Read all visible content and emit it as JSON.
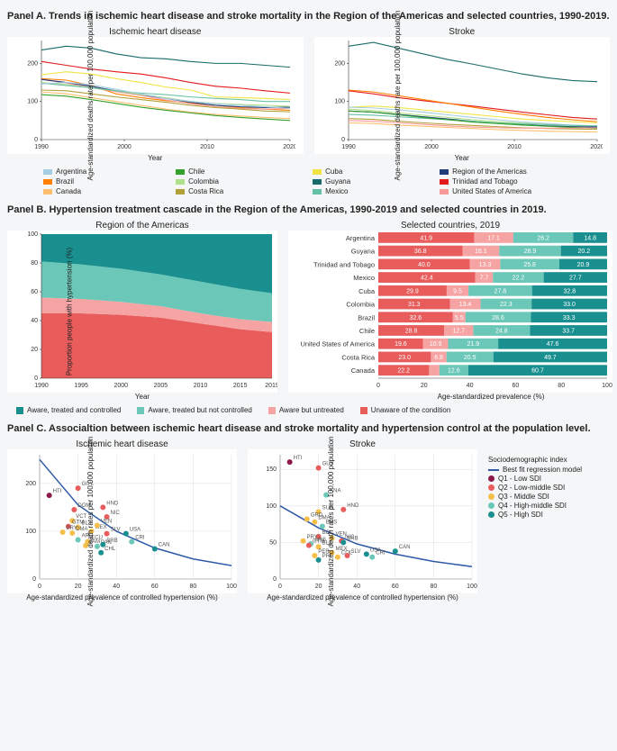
{
  "panelA": {
    "title": "Panel A. Trends in ischemic heart disease and stroke mortality in the Region of the Americas and selected countries, 1990-2019.",
    "left_title": "Ischemic heart disease",
    "right_title": "Stroke",
    "ylabel": "Age-standardized deaths rate per 100,000 population",
    "xlabel": "Year",
    "xlim": [
      1990,
      2020
    ],
    "xtick_step": 10,
    "ylim": [
      0,
      260
    ],
    "yticks": [
      0,
      100,
      200
    ],
    "colors": {
      "Argentina": "#a6cee3",
      "Brazil": "#ff7f00",
      "Canada": "#fdbf6f",
      "Chile": "#33a02c",
      "Colombia": "#b2df8a",
      "Costa Rica": "#b1a13a",
      "Cuba": "#f0e442",
      "Guyana": "#1a6b6b",
      "Mexico": "#66c2a5",
      "Region of the Americas": "#1f3d7a",
      "Trinidad and Tobago": "#e31a1c",
      "United States of America": "#fb9a99"
    },
    "legend_grid": [
      [
        "Argentina",
        "Chile",
        "Cuba",
        "Region of the Americas"
      ],
      [
        "Brazil",
        "Colombia",
        "Guyana",
        "Trinidad and Tobago"
      ],
      [
        "Canada",
        "Costa Rica",
        "Mexico",
        "United States of America"
      ]
    ],
    "x_years": [
      1990,
      1993,
      1996,
      1999,
      2002,
      2005,
      2008,
      2011,
      2014,
      2017,
      2020
    ],
    "ihd_series": {
      "Guyana": [
        235,
        245,
        240,
        225,
        215,
        212,
        205,
        200,
        200,
        195,
        190
      ],
      "Trinidad and Tobago": [
        205,
        195,
        185,
        178,
        172,
        162,
        150,
        140,
        135,
        128,
        122
      ],
      "Cuba": [
        170,
        178,
        172,
        160,
        150,
        138,
        130,
        112,
        110,
        108,
        105
      ],
      "Brazil": [
        160,
        156,
        142,
        120,
        110,
        102,
        96,
        90,
        84,
        80,
        77
      ],
      "United States of America": [
        158,
        148,
        136,
        126,
        116,
        104,
        94,
        86,
        82,
        80,
        82
      ],
      "Region of the Americas": [
        158,
        150,
        140,
        128,
        118,
        108,
        98,
        90,
        86,
        84,
        85
      ],
      "Colombia": [
        150,
        144,
        136,
        128,
        118,
        110,
        100,
        95,
        92,
        90,
        87
      ],
      "Mexico": [
        148,
        142,
        136,
        128,
        122,
        118,
        112,
        108,
        105,
        100,
        100
      ],
      "Argentina": [
        146,
        150,
        144,
        132,
        120,
        108,
        100,
        94,
        90,
        86,
        82
      ],
      "Costa Rica": [
        130,
        128,
        120,
        112,
        105,
        98,
        90,
        84,
        80,
        75,
        73
      ],
      "Canada": [
        125,
        120,
        110,
        100,
        90,
        80,
        72,
        66,
        62,
        58,
        55
      ],
      "Chile": [
        118,
        114,
        105,
        95,
        85,
        77,
        70,
        63,
        58,
        54,
        50
      ]
    },
    "stroke_series": {
      "Guyana": [
        245,
        255,
        240,
        225,
        210,
        198,
        185,
        172,
        162,
        155,
        152
      ],
      "Trinidad and Tobago": [
        128,
        120,
        110,
        102,
        95,
        88,
        80,
        72,
        65,
        58,
        54
      ],
      "Brazil": [
        130,
        125,
        115,
        105,
        95,
        85,
        75,
        66,
        58,
        52,
        47
      ],
      "Cuba": [
        85,
        88,
        84,
        78,
        72,
        66,
        60,
        54,
        50,
        47,
        44
      ],
      "Colombia": [
        80,
        76,
        70,
        64,
        58,
        52,
        47,
        43,
        40,
        38,
        36
      ],
      "Argentina": [
        85,
        83,
        78,
        72,
        65,
        58,
        52,
        46,
        42,
        38,
        35
      ],
      "Region of the Americas": [
        75,
        72,
        66,
        60,
        54,
        48,
        43,
        39,
        36,
        34,
        33
      ],
      "Mexico": [
        66,
        64,
        60,
        56,
        52,
        48,
        44,
        41,
        39,
        37,
        36
      ],
      "Chile": [
        75,
        72,
        65,
        58,
        52,
        46,
        42,
        38,
        35,
        32,
        30
      ],
      "Costa Rica": [
        55,
        53,
        48,
        44,
        40,
        37,
        34,
        31,
        29,
        28,
        27
      ],
      "United States of America": [
        50,
        48,
        44,
        40,
        36,
        33,
        31,
        30,
        30,
        30,
        31
      ],
      "Canada": [
        44,
        42,
        38,
        35,
        32,
        29,
        26,
        24,
        22,
        21,
        20
      ]
    }
  },
  "panelB": {
    "title": "Panel B. Hypertension treatment cascade in the Region of the Americas, 1990-2019 and selected countries in 2019.",
    "left_title": "Region of the Americas",
    "right_title": "Selected countries, 2019",
    "ylabel": "Proportion people with hypertension (%)",
    "xlabel_left": "Year",
    "xlabel_right": "Age-standardized prevalence (%)",
    "xlim_left": [
      1990,
      2019
    ],
    "xtick_step_left": 5,
    "ylim_left": [
      0,
      100
    ],
    "ytick_step": 20,
    "colors": {
      "controlled": "#1a8f8f",
      "treated_uncontrolled": "#6bc7b8",
      "aware_untreated": "#f5a3a3",
      "unaware": "#e85c5c"
    },
    "legend_labels": {
      "controlled": "Aware, treated and controlled",
      "treated_uncontrolled": "Aware, treated but not controlled",
      "aware_untreated": "Aware but untreated",
      "unaware": "Unaware of the condition"
    },
    "area_x": [
      1990,
      1995,
      2000,
      2005,
      2010,
      2015,
      2019
    ],
    "area_unaware": [
      45,
      45,
      44,
      42,
      38,
      34,
      32
    ],
    "area_aware_untreated": [
      11,
      10,
      9,
      8,
      7,
      7,
      7
    ],
    "area_treated_uncontrolled": [
      25,
      24,
      23,
      22,
      22,
      21,
      20
    ],
    "bars": [
      {
        "country": "Argentina",
        "vals": [
          41.9,
          17.1,
          26.2,
          14.8
        ]
      },
      {
        "country": "Guyana",
        "vals": [
          36.8,
          16.1,
          26.9,
          20.2
        ]
      },
      {
        "country": "Trinidad and Tobago",
        "vals": [
          40.0,
          13.3,
          25.8,
          20.9
        ]
      },
      {
        "country": "Mexico",
        "vals": [
          42.4,
          7.7,
          22.2,
          27.7
        ]
      },
      {
        "country": "Cuba",
        "vals": [
          29.9,
          9.5,
          27.8,
          32.8
        ]
      },
      {
        "country": "Colombia",
        "vals": [
          31.3,
          13.4,
          22.3,
          33.0
        ]
      },
      {
        "country": "Brazil",
        "vals": [
          32.6,
          5.5,
          28.6,
          33.3
        ]
      },
      {
        "country": "Chile",
        "vals": [
          28.8,
          12.7,
          24.8,
          33.7
        ]
      },
      {
        "country": "United States of America",
        "vals": [
          19.6,
          10.9,
          21.9,
          47.6
        ]
      },
      {
        "country": "Costa Rica",
        "vals": [
          23.0,
          6.8,
          20.5,
          49.7
        ]
      },
      {
        "country": "Canada",
        "vals": [
          22.2,
          4.5,
          12.6,
          60.7
        ]
      }
    ],
    "bar_colors": [
      "#e85c5c",
      "#f5a3a3",
      "#6bc7b8",
      "#1a8f8f"
    ],
    "bar_show_val_threshold": 5
  },
  "panelC": {
    "title": "Panel C. Associaltion between ischemic heart disease and stroke mortality and hypertension control at the population level.",
    "left_title": "Ischemic heart disease",
    "right_title": "Stroke",
    "ylabel": "Age-standardized death rates per 100,000 population",
    "xlabel": "Age-standardized prevalence of controlled hypertension (%)",
    "xlim": [
      0,
      100
    ],
    "xtick_step": 20,
    "left_ylim": [
      0,
      260
    ],
    "left_yticks": [
      0,
      100,
      200
    ],
    "right_ylim": [
      0,
      170
    ],
    "right_yticks": [
      0,
      50,
      100,
      150
    ],
    "sdi_colors": {
      "Q1": "#8b1a4a",
      "Q2": "#e85c5c",
      "Q3": "#f5c04a",
      "Q4": "#6bc7b8",
      "Q5": "#1a8f8f",
      "fit": "#2e5aa8"
    },
    "legend": {
      "title": "Sociodemographic index",
      "fit": "Best fit regression model",
      "Q1": "Q1 - Low SDI",
      "Q2": "Q2 - Low-middle SDI",
      "Q3": "Q3 - Middle SDI",
      "Q4": "Q4 - High-middle SDI",
      "Q5": "Q5 - High SDI"
    },
    "ihd_points": [
      {
        "l": "HTI",
        "x": 5,
        "y": 175,
        "q": "Q1"
      },
      {
        "l": "GUY",
        "x": 20,
        "y": 190,
        "q": "Q2"
      },
      {
        "l": "DOM",
        "x": 18,
        "y": 145,
        "q": "Q2"
      },
      {
        "l": "HND",
        "x": 33,
        "y": 150,
        "q": "Q2"
      },
      {
        "l": "NIC",
        "x": 35,
        "y": 130,
        "q": "Q2"
      },
      {
        "l": "VCT",
        "x": 17,
        "y": 122,
        "q": "Q3"
      },
      {
        "l": "GTM",
        "x": 15,
        "y": 110,
        "q": "Q2"
      },
      {
        "l": "BLZ",
        "x": 20,
        "y": 108,
        "q": "Q3"
      },
      {
        "l": "PRY",
        "x": 12,
        "y": 98,
        "q": "Q3"
      },
      {
        "l": "DMA",
        "x": 17,
        "y": 96,
        "q": "Q3"
      },
      {
        "l": "MEX",
        "x": 27,
        "y": 100,
        "q": "Q3"
      },
      {
        "l": "VEN",
        "x": 30,
        "y": 112,
        "q": "Q3"
      },
      {
        "l": "SLV",
        "x": 35,
        "y": 95,
        "q": "Q2"
      },
      {
        "l": "USA",
        "x": 45,
        "y": 95,
        "q": "Q5"
      },
      {
        "l": "ARG",
        "x": 20,
        "y": 82,
        "q": "Q4"
      },
      {
        "l": "ECU",
        "x": 25,
        "y": 78,
        "q": "Q3"
      },
      {
        "l": "JAM",
        "x": 24,
        "y": 70,
        "q": "Q3"
      },
      {
        "l": "PAN",
        "x": 30,
        "y": 68,
        "q": "Q4"
      },
      {
        "l": "BRB",
        "x": 33,
        "y": 72,
        "q": "Q5"
      },
      {
        "l": "CRI",
        "x": 48,
        "y": 78,
        "q": "Q4"
      },
      {
        "l": "CHL",
        "x": 32,
        "y": 55,
        "q": "Q5"
      },
      {
        "l": "CAN",
        "x": 60,
        "y": 63,
        "q": "Q5"
      }
    ],
    "ihd_fit": [
      [
        0,
        250
      ],
      [
        20,
        155
      ],
      [
        40,
        100
      ],
      [
        60,
        65
      ],
      [
        80,
        42
      ],
      [
        100,
        28
      ]
    ],
    "stroke_points": [
      {
        "l": "HTI",
        "x": 5,
        "y": 160,
        "q": "Q1"
      },
      {
        "l": "GUY",
        "x": 20,
        "y": 152,
        "q": "Q2"
      },
      {
        "l": "KNA",
        "x": 24,
        "y": 115,
        "q": "Q4"
      },
      {
        "l": "SUR",
        "x": 20,
        "y": 92,
        "q": "Q3"
      },
      {
        "l": "HND",
        "x": 33,
        "y": 95,
        "q": "Q2"
      },
      {
        "l": "GRD",
        "x": 14,
        "y": 82,
        "q": "Q3"
      },
      {
        "l": "DMA",
        "x": 18,
        "y": 78,
        "q": "Q3"
      },
      {
        "l": "BHS",
        "x": 22,
        "y": 72,
        "q": "Q4"
      },
      {
        "l": "BOL",
        "x": 20,
        "y": 58,
        "q": "Q2"
      },
      {
        "l": "PRY",
        "x": 12,
        "y": 52,
        "q": "Q3"
      },
      {
        "l": "ARG",
        "x": 16,
        "y": 48,
        "q": "Q4"
      },
      {
        "l": "GTM",
        "x": 15,
        "y": 46,
        "q": "Q2"
      },
      {
        "l": "BLZ",
        "x": 20,
        "y": 44,
        "q": "Q3"
      },
      {
        "l": "VEN",
        "x": 27,
        "y": 56,
        "q": "Q3"
      },
      {
        "l": "NIC",
        "x": 32,
        "y": 52,
        "q": "Q2"
      },
      {
        "l": "BRB",
        "x": 33,
        "y": 50,
        "q": "Q5"
      },
      {
        "l": "MEX",
        "x": 27,
        "y": 36,
        "q": "Q3"
      },
      {
        "l": "PER",
        "x": 18,
        "y": 32,
        "q": "Q3"
      },
      {
        "l": "COL",
        "x": 30,
        "y": 30,
        "q": "Q3"
      },
      {
        "l": "SLV",
        "x": 35,
        "y": 32,
        "q": "Q2"
      },
      {
        "l": "PRI",
        "x": 20,
        "y": 26,
        "q": "Q5"
      },
      {
        "l": "USA",
        "x": 45,
        "y": 34,
        "q": "Q5"
      },
      {
        "l": "CRI",
        "x": 48,
        "y": 30,
        "q": "Q4"
      },
      {
        "l": "CAN",
        "x": 60,
        "y": 38,
        "q": "Q5"
      }
    ],
    "stroke_fit": [
      [
        0,
        100
      ],
      [
        20,
        70
      ],
      [
        40,
        48
      ],
      [
        60,
        34
      ],
      [
        80,
        24
      ],
      [
        100,
        17
      ]
    ]
  }
}
